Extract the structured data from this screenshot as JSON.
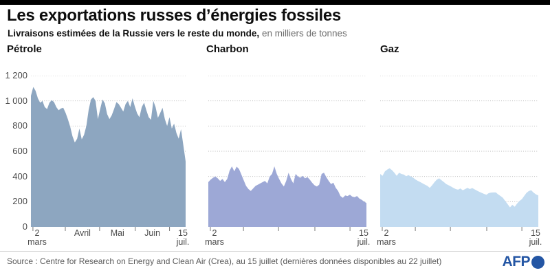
{
  "header": {
    "title": "Les exportations russes d’énergies fossiles",
    "subtitle_bold": "Livraisons estimées de la Russie vers le reste du monde,",
    "subtitle_unit": "en milliers de tonnes"
  },
  "chart_data": [
    {
      "type": "area",
      "title": "Pétrole",
      "color": "#8da6c0",
      "ylim": [
        0,
        1200
      ],
      "x_range": [
        "2 mars",
        "15 juil."
      ],
      "y_tick_labels": [
        "0",
        "200",
        "400",
        "600",
        "800",
        "1 000",
        "1 200"
      ],
      "x_axis": {
        "start": [
          "2",
          "mars"
        ],
        "end": [
          "15",
          "juil."
        ],
        "months": [
          "Avril",
          "Mai",
          "Juin"
        ]
      },
      "values": [
        1040,
        1110,
        1080,
        1020,
        985,
        1000,
        950,
        935,
        985,
        1005,
        990,
        950,
        925,
        940,
        945,
        905,
        855,
        795,
        720,
        670,
        700,
        780,
        695,
        730,
        800,
        930,
        1010,
        1030,
        1000,
        855,
        935,
        1010,
        980,
        895,
        855,
        885,
        935,
        990,
        975,
        945,
        915,
        975,
        1000,
        950,
        1020,
        955,
        900,
        870,
        950,
        985,
        925,
        870,
        850,
        1000,
        950,
        865,
        905,
        945,
        855,
        800,
        870,
        780,
        820,
        745,
        700,
        775,
        650,
        520
      ]
    },
    {
      "type": "area",
      "title": "Charbon",
      "color": "#9da8d6",
      "ylim": [
        0,
        1200
      ],
      "x_range": [
        "2 mars",
        "15 juil."
      ],
      "y_tick_labels": [],
      "x_axis": {
        "start": [
          "2",
          "mars"
        ],
        "end": [
          "15",
          "juil."
        ],
        "months": []
      },
      "values": [
        355,
        375,
        390,
        400,
        385,
        365,
        380,
        355,
        380,
        445,
        480,
        440,
        478,
        460,
        415,
        370,
        325,
        300,
        285,
        305,
        325,
        335,
        345,
        355,
        365,
        345,
        400,
        420,
        480,
        420,
        380,
        345,
        320,
        365,
        430,
        380,
        345,
        420,
        400,
        390,
        405,
        385,
        395,
        375,
        350,
        330,
        320,
        335,
        420,
        430,
        395,
        365,
        340,
        350,
        310,
        285,
        245,
        230,
        250,
        245,
        255,
        240,
        235,
        245,
        225,
        215,
        200,
        190
      ]
    },
    {
      "type": "area",
      "title": "Gaz",
      "color": "#c3dcf1",
      "ylim": [
        0,
        1200
      ],
      "x_range": [
        "2 mars",
        "15 juil."
      ],
      "y_tick_labels": [],
      "x_axis": {
        "start": [
          "2",
          "mars"
        ],
        "end": [
          "15",
          "juil."
        ],
        "months": []
      },
      "values": [
        420,
        405,
        440,
        455,
        465,
        450,
        430,
        405,
        430,
        420,
        415,
        402,
        410,
        400,
        390,
        375,
        365,
        355,
        345,
        335,
        325,
        310,
        330,
        355,
        375,
        385,
        370,
        355,
        340,
        330,
        320,
        310,
        300,
        295,
        305,
        290,
        300,
        310,
        300,
        308,
        298,
        288,
        278,
        270,
        262,
        255,
        268,
        272,
        273,
        273,
        258,
        245,
        230,
        205,
        180,
        155,
        175,
        160,
        185,
        205,
        220,
        245,
        270,
        285,
        290,
        272,
        258,
        250
      ]
    }
  ],
  "footer": {
    "source": "Source : Centre for Research on Energy and Clean Air (Crea), au 15 juillet (dernières données disponibles au 22 juillet)",
    "logo_text": "AFP"
  }
}
